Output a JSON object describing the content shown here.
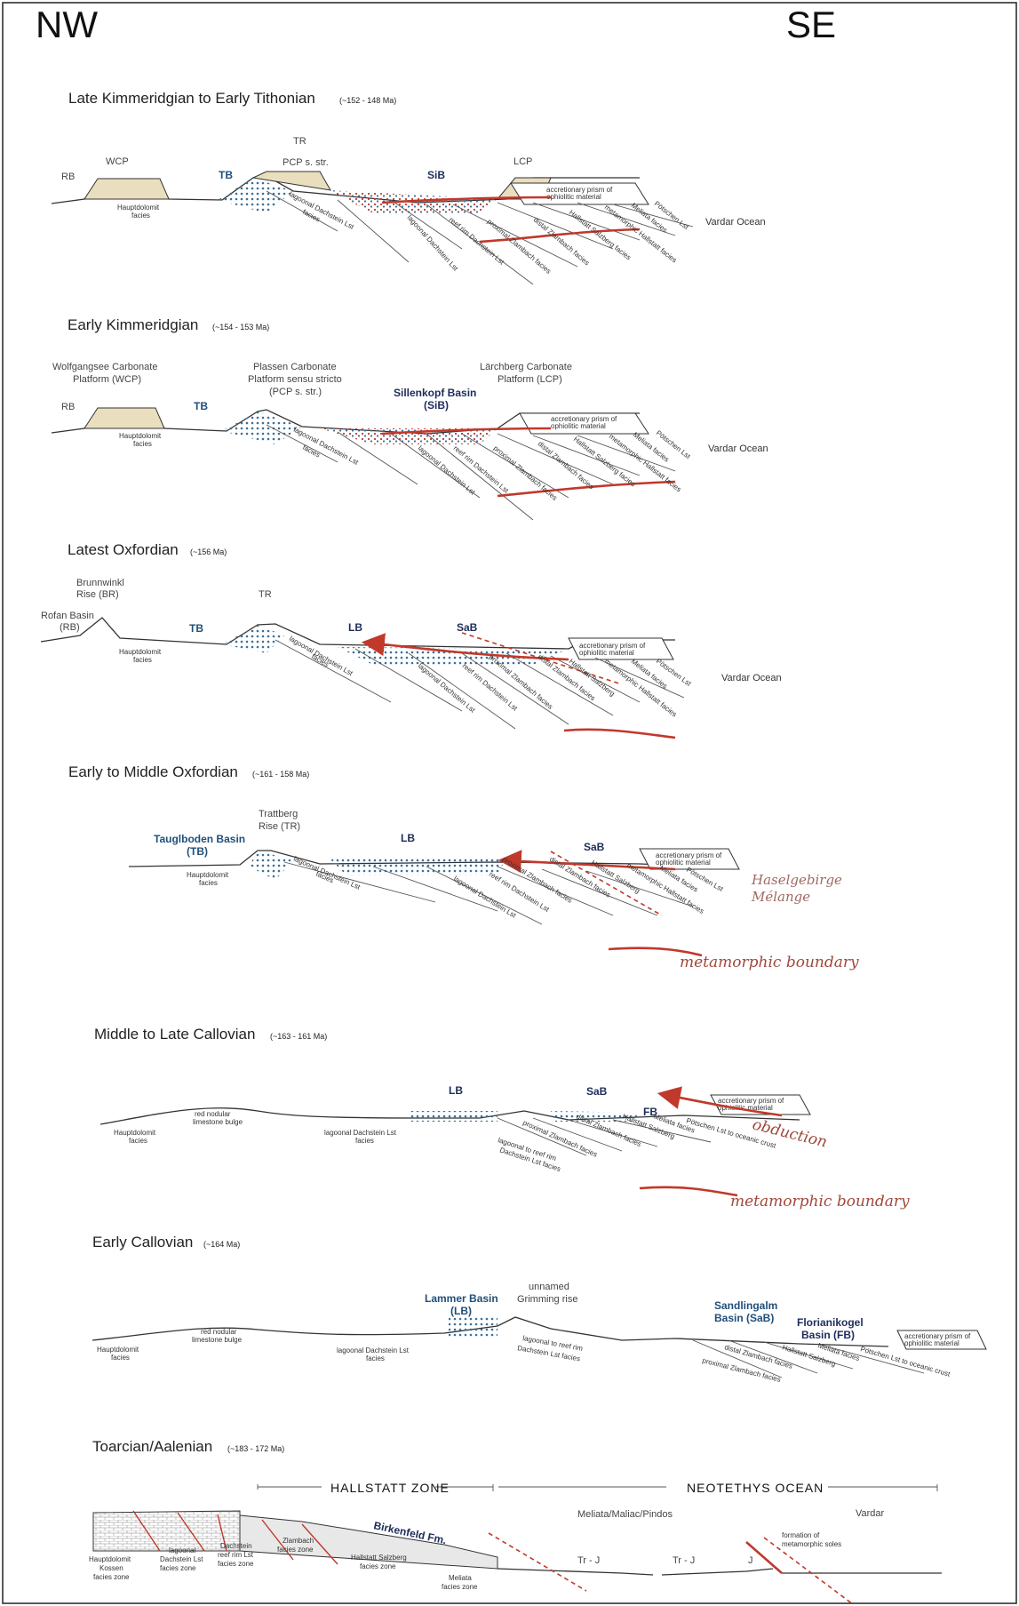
{
  "header": {
    "left": "NW",
    "right": "SE"
  },
  "colors": {
    "basin_label": "#1f4f7a",
    "red_structure": "#c0392b",
    "platform_fill": "#e9dfbf"
  },
  "panels": [
    {
      "title": "Late Kimmeridgian to Early Tithonian",
      "date": "(~152 - 148 Ma)",
      "labels": {
        "rb": "RB",
        "wcp": "WCP",
        "tb": "TB",
        "tr": "TR",
        "pcp": "PCP s. str.",
        "sib": "SiB",
        "lcp": "LCP",
        "prism1": "accretionary prism of",
        "prism2": "ophiolitic material",
        "vardar": "Vardar Ocean",
        "hauptdolomit1": "Hauptdolomit",
        "hauptdolomit2": "facies",
        "lagoonal1": "lagoonal Dachstein Lst",
        "lagoonal2": "facies",
        "reefrim": "reef rim Dachstein Lst",
        "proximal": "proximal Zlambach facies",
        "distal": "distal Zlambach facies",
        "hallstatt": "Hallstatt Salzberg facies",
        "meliata": "Meliata facies",
        "potschen": "Pötschen Lst",
        "metahall": "metamorphic Hallstatt facies",
        "lagoonal3": "lagoonal Dachstein Lst",
        "facies": "facies"
      }
    },
    {
      "title": "Early Kimmeridgian",
      "date": "(~154 - 153 Ma)",
      "labels": {
        "wcp1": "Wolfgangsee Carbonate",
        "wcp2": "Platform (WCP)",
        "pcp1": "Plassen Carbonate",
        "pcp2": "Platform sensu stricto",
        "pcp3": "(PCP s. str.)",
        "sib1": "Sillenkopf Basin",
        "sib2": "(SiB)",
        "lcp1": "Lärchberg Carbonate",
        "lcp2": "Platform (LCP)",
        "rb": "RB",
        "tb": "TB",
        "prism1": "accretionary prism of",
        "prism2": "ophiolitic material",
        "vardar": "Vardar Ocean",
        "hauptdolomit1": "Hauptdolomit",
        "hauptdolomit2": "facies",
        "lagoonal1": "lagoonal Dachstein Lst",
        "lagoonal2": "facies",
        "reefrim": "reef rim Dachstein Lst",
        "proximal": "proximal Zlambach facies",
        "distal": "distal Zlambach facies",
        "hallstatt": "Hallstatt Salzberg facies",
        "meliata": "Meliata facies",
        "potschen": "Pötschen Lst",
        "metahall": "metamorphic Hallstatt facies",
        "lagoonal3": "lagoonal Dachstein Lst",
        "facies": "facies"
      }
    },
    {
      "title": "Latest Oxfordian",
      "date": "(~156 Ma)",
      "labels": {
        "br1": "Brunnwinkl",
        "br2": "Rise (BR)",
        "rofan1": "Rofan Basin",
        "rofan2": "(RB)",
        "tb": "TB",
        "tr": "TR",
        "lb": "LB",
        "sab": "SaB",
        "prism1": "accretionary prism of",
        "prism2": "ophiolitic material",
        "vardar": "Vardar Ocean",
        "hauptdolomit1": "Hauptdolomit",
        "hauptdolomit2": "facies",
        "lagoonal1": "lagoonal Dachstein Lst",
        "lagoonal2": "facies",
        "reefrim": "reef rim Dachstein Lst",
        "proximal": "proximal Zlambach facies",
        "distal": "distal Zlambach facies",
        "hallstatt": "Hallstatt Salzberg",
        "meliata": "Meliata facies",
        "potschen": "Pötschen Lst",
        "metahall": "metamorphic Hallstatt facies",
        "lagoonal3": "lagoonal Dachstein Lst",
        "facies": "facies"
      }
    },
    {
      "title": "Early to Middle Oxfordian",
      "date": "(~161 - 158 Ma)",
      "labels": {
        "tr1": "Trattberg",
        "tr2": "Rise (TR)",
        "tb1": "Tauglboden Basin",
        "tb2": "(TB)",
        "lb": "LB",
        "sab": "SaB",
        "prism1": "accretionary prism of",
        "prism2": "ophiolitic material",
        "haselgebirge1": "Haselgebirge",
        "haselgebirge2": "Mélange",
        "metaboundary": "metamorphic boundary",
        "hauptdolomit1": "Hauptdolomit",
        "hauptdolomit2": "facies",
        "lagoonal1": "lagoonal Dachstein Lst",
        "lagoonal2": "facies",
        "reefrim": "reef rim Dachstein Lst",
        "proximal": "proximal Zlambach facies",
        "distal": "distal Zlambach facies",
        "hallstatt": "Hallstatt Salzberg",
        "meliata": "Meliata facies",
        "potschen": "Pötschen Lst",
        "metahall": "metamorphic Hallstatt facies",
        "lagoonal3": "lagoonal Dachstein Lst",
        "facies": "facies"
      }
    },
    {
      "title": "Middle to Late Callovian",
      "date": "(~163 - 161 Ma)",
      "labels": {
        "lb": "LB",
        "sab": "SaB",
        "fb": "FB",
        "prism1": "accretionary prism of",
        "prism2": "ophiolitic material",
        "obduction": "obduction",
        "metaboundary": "metamorphic boundary",
        "hauptdolomit1": "Hauptdolomit",
        "hauptdolomit2": "facies",
        "rednod1": "red nodular",
        "rednod2": "limestone bulge",
        "lagoonal1": "lagoonal Dachstein Lst",
        "lagoonal2": "facies",
        "lagreef1": "lagoonal to reef rim",
        "lagreef2": "Dachstein Lst facies",
        "proximal": "proximal Zlambach facies",
        "distal": "distal Zlambach facies",
        "hallstatt": "Hallstatt Salzberg",
        "meliata": "Meliata facies",
        "potschen": "Pötschen Lst to oceanic crust"
      }
    },
    {
      "title": "Early Callovian",
      "date": "(~164 Ma)",
      "labels": {
        "lb1": "Lammer Basin",
        "lb2": "(LB)",
        "grim1": "unnamed",
        "grim2": "Grimming rise",
        "sab1": "Sandlingalm",
        "sab2": "Basin (SaB)",
        "fb1": "Florianikogel",
        "fb2": "Basin (FB)",
        "prism1": "accretionary prism of",
        "prism2": "ophiolitic material",
        "hauptdolomit1": "Hauptdolomit",
        "hauptdolomit2": "facies",
        "rednod1": "red nodular",
        "rednod2": "limestone bulge",
        "lagoonal1": "lagoonal Dachstein Lst",
        "lagoonal2": "facies",
        "lagreef1": "lagoonal to reef rim",
        "lagreef2": "Dachstein Lst facies",
        "proximal": "proximal Zlambach facies",
        "distal": "distal Zlambach facies",
        "hallstatt": "Hallstatt Salzberg",
        "meliata": "Meliata facies",
        "potschen": "Pötschen Lst to oceanic crust"
      }
    },
    {
      "title": "Toarcian/Aalenian",
      "date": "(~183 - 172 Ma)",
      "labels": {
        "hallstatt_zone": "HALLSTATT ZONE",
        "neotethys": "NEOTETHYS OCEAN",
        "birkenfeld": "Birkenfeld Fm.",
        "meliata_pindos": "Meliata/Maliac/Pindos",
        "vardar": "Vardar",
        "tj1": "Tr - J",
        "tj2": "Tr - J",
        "j": "J",
        "metasoles1": "formation of",
        "metasoles2": "metamorphic soles",
        "z1a": "Hauptdolomit",
        "z1b": "Kossen",
        "z1c": "facies zone",
        "z2a": "lagoonal",
        "z2b": "Dachstein Lst",
        "z2c": "facies zone",
        "z3a": "Dachstein",
        "z3b": "reef rim Lst",
        "z3c": "facies zone",
        "z4a": "Zlambach",
        "z4b": "facies zone",
        "z5a": "Hallstatt Salzberg",
        "z5b": "facies zone",
        "z6a": "Meliata",
        "z6b": "facies zone"
      }
    }
  ]
}
